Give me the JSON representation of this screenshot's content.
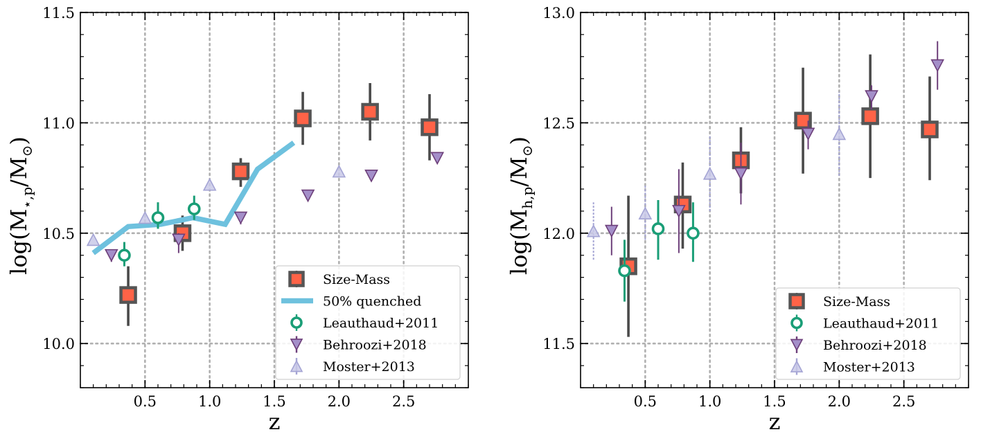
{
  "chart_data": [
    {
      "type": "scatter",
      "panel": "left",
      "xlabel": "z",
      "ylabel": "log(M",
      "ylabel_sub": "⋆,p",
      "ylabel_tail": "/M",
      "ylabel_sun": "⊙",
      "ylabel_close": ")",
      "xlim": [
        0.0,
        3.0
      ],
      "ylim": [
        9.8,
        11.5
      ],
      "xticks": [
        0.5,
        1.0,
        1.5,
        2.0,
        2.5
      ],
      "xtick_labels": [
        "0.5",
        "1.0",
        "1.5",
        "2.0",
        "2.5"
      ],
      "yticks": [
        10.0,
        10.5,
        11.0,
        11.5
      ],
      "ytick_labels": [
        "10.0",
        "10.5",
        "11.0",
        "11.5"
      ],
      "grid": true,
      "legend_position": "lower-right",
      "series": [
        {
          "name": "Size-Mass",
          "marker": "square",
          "color": "#ff6347",
          "edge": "#555555",
          "points": [
            {
              "x": 0.37,
              "y": 10.22,
              "ylo": 10.08,
              "yhi": 10.35
            },
            {
              "x": 0.79,
              "y": 10.5,
              "ylo": 10.42,
              "yhi": 10.58
            },
            {
              "x": 1.24,
              "y": 10.78,
              "ylo": 10.71,
              "yhi": 10.84
            },
            {
              "x": 1.72,
              "y": 11.02,
              "ylo": 10.9,
              "yhi": 11.14
            },
            {
              "x": 2.24,
              "y": 11.05,
              "ylo": 10.92,
              "yhi": 11.18
            },
            {
              "x": 2.7,
              "y": 10.98,
              "ylo": 10.83,
              "yhi": 11.13
            }
          ]
        },
        {
          "name": "50% quenched",
          "marker": "line",
          "color": "#6ec1de",
          "points": [
            {
              "x": 0.1,
              "y": 10.41
            },
            {
              "x": 0.37,
              "y": 10.53
            },
            {
              "x": 0.62,
              "y": 10.54
            },
            {
              "x": 0.87,
              "y": 10.57
            },
            {
              "x": 1.12,
              "y": 10.54
            },
            {
              "x": 1.37,
              "y": 10.79
            },
            {
              "x": 1.65,
              "y": 10.91
            }
          ]
        },
        {
          "name": "Leauthaud+2011",
          "marker": "circle",
          "color": "#1a9e77",
          "points": [
            {
              "x": 0.34,
              "y": 10.4,
              "ylo": 10.35,
              "yhi": 10.46
            },
            {
              "x": 0.6,
              "y": 10.57,
              "ylo": 10.52,
              "yhi": 10.64
            },
            {
              "x": 0.88,
              "y": 10.61,
              "ylo": 10.56,
              "yhi": 10.67
            }
          ]
        },
        {
          "name": "Behroozi+2018",
          "marker": "triangle-down",
          "color": "#a48fc9",
          "edge": "#6d3f7a",
          "points": [
            {
              "x": 0.24,
              "y": 10.4,
              "ylo": 10.37,
              "yhi": 10.42
            },
            {
              "x": 0.76,
              "y": 10.47,
              "ylo": 10.41,
              "yhi": 10.5
            },
            {
              "x": 1.24,
              "y": 10.57,
              "ylo": 10.54,
              "yhi": 10.59
            },
            {
              "x": 1.76,
              "y": 10.67,
              "ylo": 10.66,
              "yhi": 10.68
            },
            {
              "x": 2.25,
              "y": 10.76,
              "ylo": 10.74,
              "yhi": 10.77
            },
            {
              "x": 2.76,
              "y": 10.84,
              "ylo": 10.82,
              "yhi": 10.85
            }
          ]
        },
        {
          "name": "Moster+2013",
          "marker": "triangle-up",
          "color": "#c9c9e8",
          "edge": "#a4a4d4",
          "points": [
            {
              "x": 0.1,
              "y": 10.47
            },
            {
              "x": 0.5,
              "y": 10.57
            },
            {
              "x": 1.0,
              "y": 10.72
            },
            {
              "x": 2.0,
              "y": 10.78
            }
          ]
        }
      ]
    },
    {
      "type": "scatter",
      "panel": "right",
      "xlabel": "z",
      "ylabel": "log(M",
      "ylabel_sub": "h,p",
      "ylabel_tail": "/M",
      "ylabel_sun": "⊙",
      "ylabel_close": ")",
      "xlim": [
        0.0,
        3.0
      ],
      "ylim": [
        11.3,
        13.0
      ],
      "xticks": [
        0.5,
        1.0,
        1.5,
        2.0,
        2.5
      ],
      "xtick_labels": [
        "0.5",
        "1.0",
        "1.5",
        "2.0",
        "2.5"
      ],
      "yticks": [
        11.5,
        12.0,
        12.5,
        13.0
      ],
      "ytick_labels": [
        "11.5",
        "12.0",
        "12.5",
        "13.0"
      ],
      "grid": true,
      "legend_position": "lower-right",
      "series": [
        {
          "name": "Size-Mass",
          "marker": "square",
          "color": "#ff6347",
          "edge": "#555555",
          "points": [
            {
              "x": 0.37,
              "y": 11.85,
              "ylo": 11.53,
              "yhi": 12.17
            },
            {
              "x": 0.79,
              "y": 12.13,
              "ylo": 11.93,
              "yhi": 12.32
            },
            {
              "x": 1.24,
              "y": 12.33,
              "ylo": 12.18,
              "yhi": 12.48
            },
            {
              "x": 1.72,
              "y": 12.51,
              "ylo": 12.27,
              "yhi": 12.75
            },
            {
              "x": 2.24,
              "y": 12.53,
              "ylo": 12.25,
              "yhi": 12.81
            },
            {
              "x": 2.7,
              "y": 12.47,
              "ylo": 12.24,
              "yhi": 12.71
            }
          ]
        },
        {
          "name": "Leauthaud+2011",
          "marker": "circle",
          "color": "#1a9e77",
          "points": [
            {
              "x": 0.34,
              "y": 11.83,
              "ylo": 11.69,
              "yhi": 11.97
            },
            {
              "x": 0.6,
              "y": 12.02,
              "ylo": 11.88,
              "yhi": 12.15
            },
            {
              "x": 0.87,
              "y": 12.0,
              "ylo": 11.87,
              "yhi": 12.14
            }
          ]
        },
        {
          "name": "Behroozi+2018",
          "marker": "triangle-down",
          "color": "#a48fc9",
          "edge": "#6d3f7a",
          "points": [
            {
              "x": 0.24,
              "y": 12.01,
              "ylo": 11.9,
              "yhi": 12.12
            },
            {
              "x": 0.76,
              "y": 12.1,
              "ylo": 11.91,
              "yhi": 12.29
            },
            {
              "x": 1.24,
              "y": 12.27,
              "ylo": 12.13,
              "yhi": 12.41
            },
            {
              "x": 1.76,
              "y": 12.45,
              "ylo": 12.38,
              "yhi": 12.51
            },
            {
              "x": 2.25,
              "y": 12.62,
              "ylo": 12.56,
              "yhi": 12.67
            },
            {
              "x": 2.76,
              "y": 12.76,
              "ylo": 12.65,
              "yhi": 12.87
            }
          ]
        },
        {
          "name": "Moster+2013",
          "marker": "triangle-up",
          "color": "#c9c9e8",
          "edge": "#a4a4d4",
          "points": [
            {
              "x": 0.1,
              "y": 12.01,
              "ylo": 11.88,
              "yhi": 12.14
            },
            {
              "x": 0.5,
              "y": 12.09,
              "ylo": 11.97,
              "yhi": 12.22
            },
            {
              "x": 1.0,
              "y": 12.27,
              "ylo": 12.1,
              "yhi": 12.44
            },
            {
              "x": 2.0,
              "y": 12.45,
              "ylo": 12.26,
              "yhi": 12.64
            }
          ]
        }
      ]
    }
  ]
}
